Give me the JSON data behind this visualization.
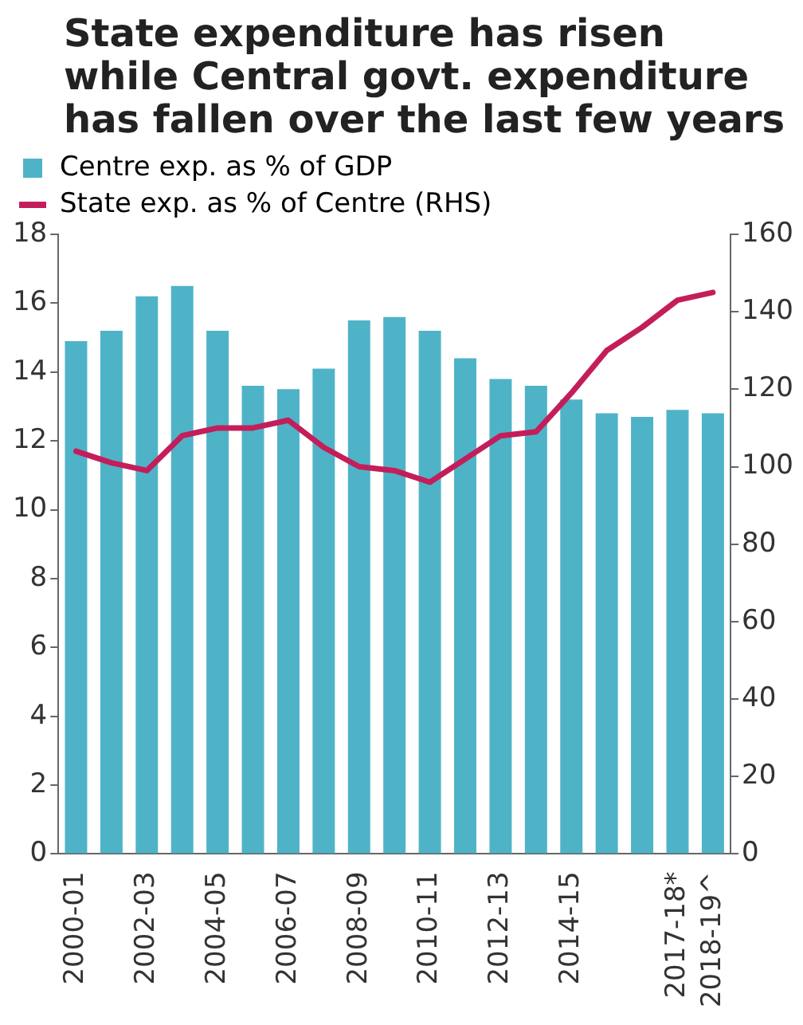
{
  "chart_data": {
    "type": "bar",
    "title": "State expenditure has risen while Central govt. expenditure has fallen over the last few years",
    "categories": [
      "2000-01",
      null,
      "2002-03",
      null,
      "2004-05",
      null,
      "2006-07",
      null,
      "2008-09",
      null,
      "2010-11",
      null,
      "2012-13",
      null,
      "2014-15",
      null,
      null,
      "2017-18*",
      "2018-19^"
    ],
    "series": [
      {
        "name": "Centre exp. as % of GDP",
        "color": "#4fb3c8",
        "values": [
          14.9,
          15.2,
          16.2,
          16.5,
          15.2,
          13.6,
          13.5,
          14.1,
          15.5,
          15.6,
          15.2,
          14.4,
          13.8,
          13.6,
          13.2,
          12.8,
          12.7,
          12.9,
          12.8
        ]
      },
      {
        "name": "State exp. as % of Centre (RHS)",
        "type": "line",
        "axis": "y2",
        "color": "#c41e5a",
        "values": [
          104,
          101,
          99,
          108,
          110,
          110,
          112,
          105,
          100,
          99,
          96,
          102,
          108,
          109,
          119,
          130,
          136,
          143,
          145
        ]
      }
    ],
    "ylim": [
      0,
      18
    ],
    "yticks": [
      0,
      2,
      4,
      6,
      8,
      10,
      12,
      14,
      16,
      18
    ],
    "y2lim": [
      0,
      160
    ],
    "y2ticks": [
      0,
      20,
      40,
      60,
      80,
      100,
      120,
      140,
      160
    ],
    "grid": false,
    "legend": "top left",
    "marker": "none",
    "line_style": "solid"
  }
}
